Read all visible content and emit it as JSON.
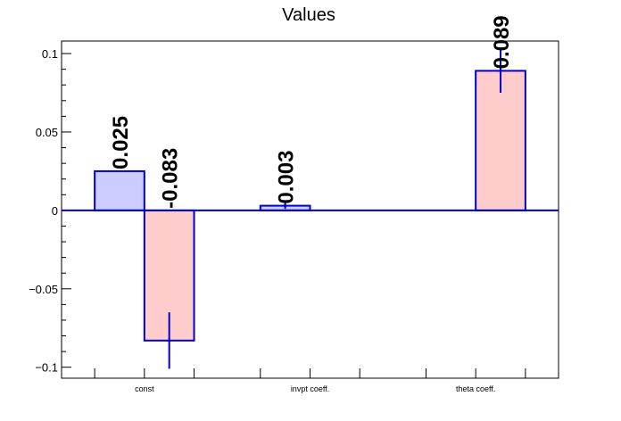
{
  "chart_data": {
    "type": "bar",
    "title": "Values",
    "xlabel": "",
    "ylabel": "",
    "ylim": [
      -0.107,
      0.108
    ],
    "yticks": [
      -0.1,
      -0.05,
      0,
      0.05,
      0.1
    ],
    "ytick_labels": [
      "−0.1",
      "−0.05",
      "0",
      "0.05",
      "0.1"
    ],
    "categories": [
      "const",
      "invpt coeff.",
      "theta coeff."
    ],
    "series": [
      {
        "color": "#ccccff",
        "bars": [
          {
            "category": "const",
            "value": 0.025,
            "error": 0.0,
            "label": "0.025"
          },
          {
            "category": "invpt coeff.",
            "value": 0.003,
            "error": 0.002,
            "label": "0.003"
          }
        ]
      },
      {
        "color": "#ffcccc",
        "bars": [
          {
            "category": "const",
            "value": -0.083,
            "error": 0.018,
            "label": "-0.083"
          },
          {
            "category": "theta coeff.",
            "value": 0.089,
            "error": 0.014,
            "label": "0.089"
          }
        ]
      }
    ],
    "edge_color": "#0000cc",
    "grid": false,
    "legend": "none"
  }
}
